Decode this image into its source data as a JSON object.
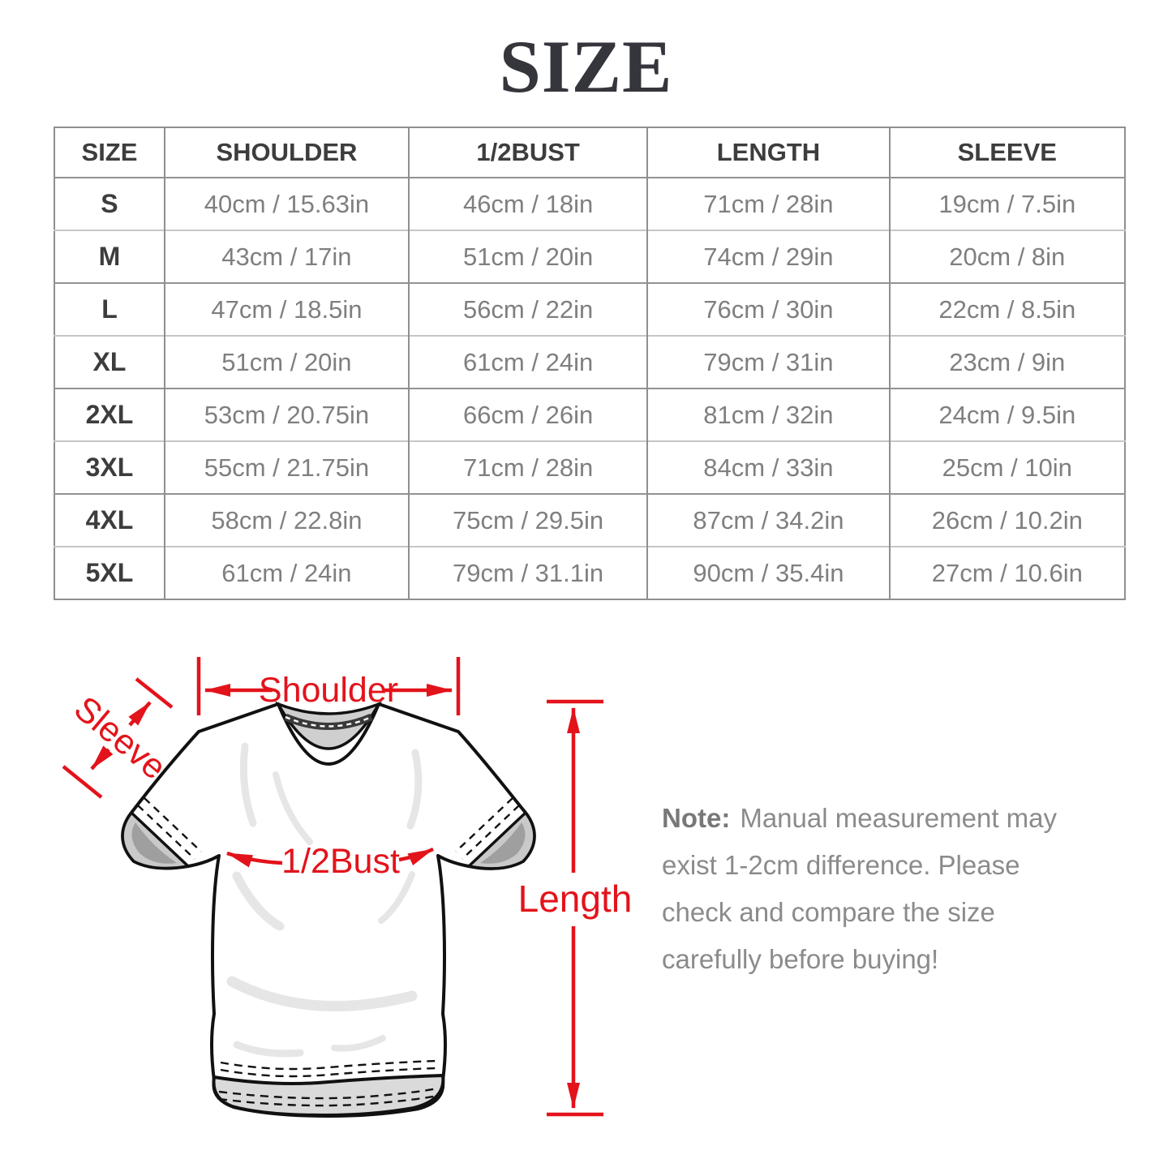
{
  "title": "SIZE",
  "table": {
    "headers": [
      "SIZE",
      "SHOULDER",
      "1/2BUST",
      "LENGTH",
      "SLEEVE"
    ],
    "rows": [
      [
        "S",
        "40cm / 15.63in",
        "46cm / 18in",
        "71cm / 28in",
        "19cm / 7.5in"
      ],
      [
        "M",
        "43cm / 17in",
        "51cm / 20in",
        "74cm / 29in",
        "20cm / 8in"
      ],
      [
        "L",
        "47cm / 18.5in",
        "56cm / 22in",
        "76cm / 30in",
        "22cm / 8.5in"
      ],
      [
        "XL",
        "51cm / 20in",
        "61cm / 24in",
        "79cm / 31in",
        "23cm / 9in"
      ],
      [
        "2XL",
        "53cm / 20.75in",
        "66cm / 26in",
        "81cm / 32in",
        "24cm / 9.5in"
      ],
      [
        "3XL",
        "55cm / 21.75in",
        "71cm / 28in",
        "84cm / 33in",
        "25cm / 10in"
      ],
      [
        "4XL",
        "58cm / 22.8in",
        "75cm / 29.5in",
        "87cm / 34.2in",
        "26cm / 10.2in"
      ],
      [
        "5XL",
        "61cm / 24in",
        "79cm / 31.1in",
        "90cm / 35.4in",
        "27cm / 10.6in"
      ]
    ]
  },
  "diagram": {
    "labels": {
      "shoulder": "Shoulder",
      "sleeve": "Sleeve",
      "bust": "1/2Bust",
      "length": "Length"
    },
    "accent_color": "#e3131b"
  },
  "note": {
    "prefix": "Note:",
    "lines": [
      "Manual measurement may",
      "exist 1-2cm difference. Please",
      "check and compare the size",
      "carefully before buying!"
    ]
  }
}
